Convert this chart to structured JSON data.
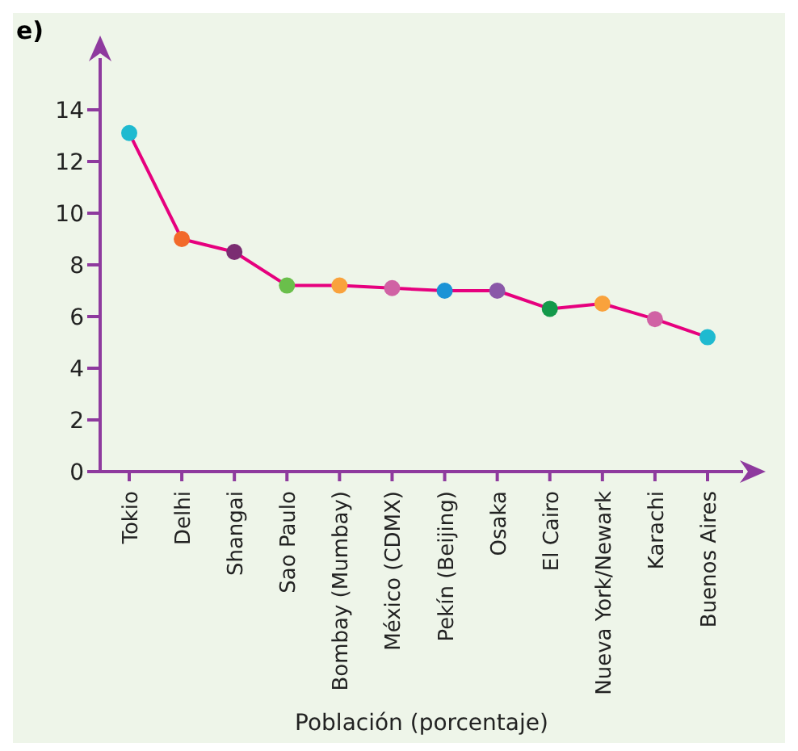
{
  "chart_data": {
    "type": "line",
    "title": "e)",
    "xlabel": "Población (porcentaje)",
    "categories": [
      "Tokio",
      "Delhi",
      "Shangai",
      "Sao Paulo",
      "Bombay (Mumbay)",
      "México (CDMX)",
      "Pekín (Beijing)",
      "Osaka",
      "El Cairo",
      "Nueva York/Newark",
      "Karachi",
      "Buenos Aires"
    ],
    "series": [
      {
        "color": "#e6007e",
        "values": [
          13.1,
          9.0,
          8.5,
          7.2,
          7.2,
          7.1,
          7.0,
          7.0,
          6.3,
          6.5,
          5.9,
          5.2
        ],
        "colors": [
          "#1fbad0",
          "#f26a2a",
          "#7b2d72",
          "#6abf4b",
          "#f9a23c",
          "#d062a4",
          "#1b93d6",
          "#8a58a8",
          "#12994a",
          "#f9a23c",
          "#d062a4",
          "#1fbad0"
        ]
      }
    ],
    "ylim": [
      0,
      16
    ],
    "yticks": [
      0,
      2,
      4,
      6,
      8,
      10,
      12,
      14
    ],
    "marker": "circle",
    "line_style": "solid"
  }
}
